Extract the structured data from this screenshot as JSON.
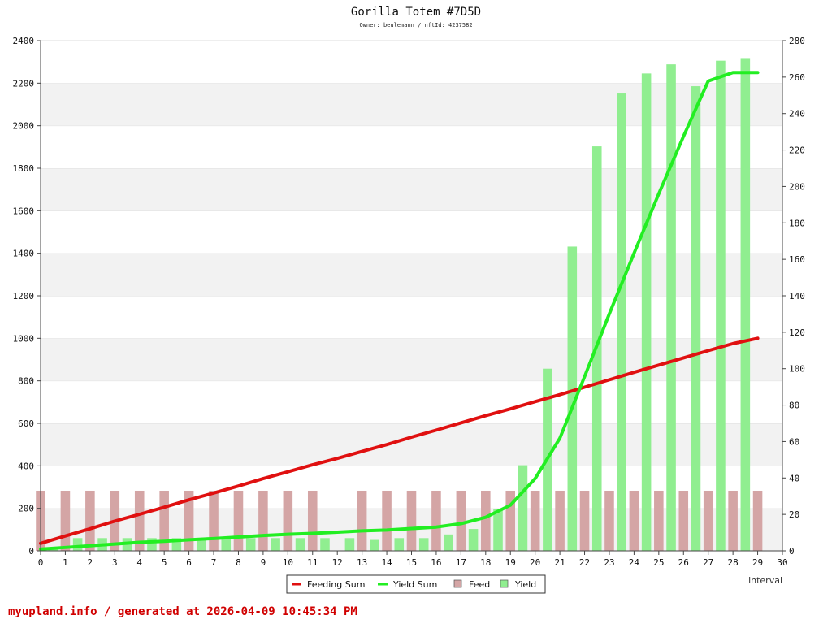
{
  "chart_data": {
    "type": "bar",
    "title": "Gorilla Totem #7D5D",
    "subtitle": "Owner: beulemann / nftId: 4237582",
    "xlabel": "interval",
    "x_ticks": [
      0,
      1,
      2,
      3,
      4,
      5,
      6,
      7,
      8,
      9,
      10,
      11,
      12,
      13,
      14,
      15,
      16,
      17,
      18,
      19,
      20,
      21,
      22,
      23,
      24,
      25,
      26,
      27,
      28,
      29,
      30
    ],
    "xlim": [
      0,
      30
    ],
    "y_left": {
      "ylim": [
        0,
        2400
      ],
      "ticks": [
        0,
        200,
        400,
        600,
        800,
        1000,
        1200,
        1400,
        1600,
        1800,
        2000,
        2200,
        2400
      ]
    },
    "y_right": {
      "ylim": [
        0,
        280
      ],
      "ticks": [
        0,
        20,
        40,
        60,
        80,
        100,
        120,
        140,
        160,
        180,
        200,
        220,
        240,
        260,
        280
      ]
    },
    "series": [
      {
        "name": "Feed",
        "kind": "bar",
        "axis": "right",
        "color": "#d4a5a5",
        "x": [
          0,
          1,
          2,
          3,
          4,
          5,
          6,
          7,
          8,
          9,
          10,
          11,
          13,
          14,
          15,
          16,
          17,
          18,
          19,
          20,
          21,
          22,
          23,
          24,
          25,
          26,
          27,
          28,
          29
        ],
        "values": [
          33,
          33,
          33,
          33,
          33,
          33,
          33,
          33,
          33,
          33,
          33,
          33,
          33,
          33,
          33,
          33,
          33,
          33,
          33,
          33,
          33,
          33,
          33,
          33,
          33,
          33,
          33,
          33,
          33
        ]
      },
      {
        "name": "Yield",
        "kind": "bar",
        "axis": "right",
        "color": "#90ee90",
        "x": [
          0,
          1,
          2,
          3,
          4,
          5,
          6,
          7,
          8,
          9,
          10,
          11,
          12,
          13,
          14,
          15,
          16,
          17,
          18,
          19,
          20,
          21,
          22,
          23,
          24,
          25,
          26,
          27,
          28
        ],
        "values": [
          2,
          7,
          7,
          7,
          7,
          7,
          7,
          7,
          7,
          7,
          7,
          7,
          7,
          6,
          7,
          7,
          9,
          12,
          23,
          47,
          100,
          167,
          222,
          251,
          262,
          267,
          255,
          269,
          270
        ]
      },
      {
        "name": "Feeding Sum",
        "kind": "line",
        "axis": "left",
        "color": "#e01010",
        "x": [
          0,
          1,
          2,
          3,
          4,
          5,
          6,
          7,
          8,
          9,
          10,
          11,
          12,
          13,
          14,
          15,
          16,
          17,
          18,
          19,
          20,
          21,
          22,
          23,
          24,
          25,
          26,
          27,
          28,
          29
        ],
        "values": [
          35,
          70,
          104,
          140,
          172,
          205,
          240,
          272,
          305,
          340,
          372,
          405,
          435,
          468,
          500,
          535,
          568,
          602,
          636,
          668,
          702,
          735,
          770,
          805,
          840,
          874,
          908,
          942,
          975,
          1000
        ]
      },
      {
        "name": "Yield Sum",
        "kind": "line",
        "axis": "left",
        "color": "#22ee22",
        "x": [
          0,
          1,
          2,
          3,
          4,
          5,
          6,
          7,
          8,
          9,
          10,
          11,
          12,
          13,
          14,
          15,
          16,
          17,
          18,
          19,
          20,
          21,
          22,
          23,
          24,
          25,
          26,
          27,
          28,
          29
        ],
        "values": [
          8,
          16,
          24,
          32,
          40,
          45,
          52,
          58,
          65,
          72,
          78,
          82,
          88,
          94,
          98,
          105,
          112,
          128,
          158,
          215,
          340,
          530,
          820,
          1115,
          1400,
          1680,
          1950,
          2210,
          2250,
          2250
        ]
      }
    ],
    "legend": {
      "placement": "bottom-center",
      "items": [
        {
          "label": "Feeding Sum",
          "kind": "line",
          "color": "#e01010"
        },
        {
          "label": "Yield Sum",
          "kind": "line",
          "color": "#22ee22"
        },
        {
          "label": "Feed",
          "kind": "bar",
          "color": "#d4a5a5"
        },
        {
          "label": "Yield",
          "kind": "bar",
          "color": "#90ee90"
        }
      ]
    },
    "grid": true
  },
  "footer": "myupland.info / generated at 2026-04-09 10:45:34 PM"
}
